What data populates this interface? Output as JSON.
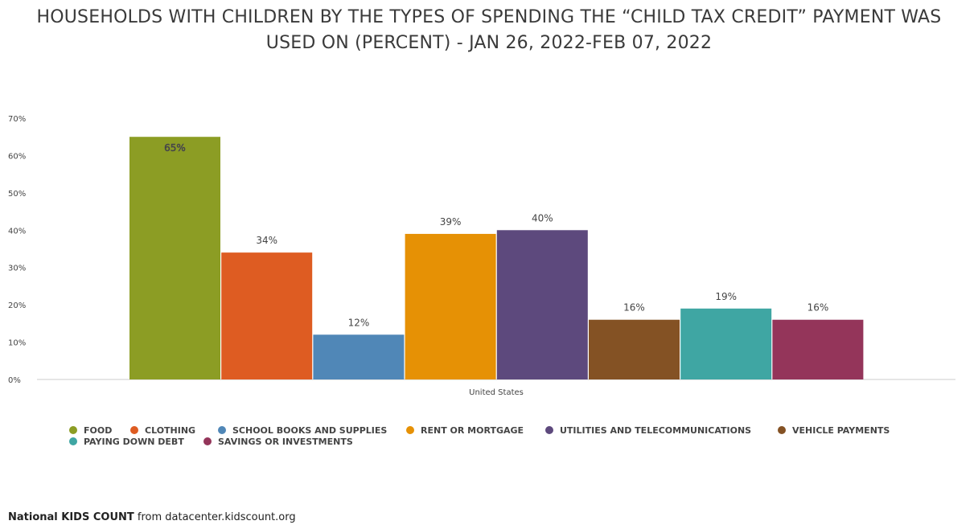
{
  "chart_data": {
    "type": "bar",
    "title": "HOUSEHOLDS WITH CHILDREN BY THE TYPES OF SPENDING THE “CHILD TAX CREDIT” PAYMENT WAS USED ON (PERCENT) - JAN 26, 2022-FEB 07, 2022",
    "title_lines": [
      "HOUSEHOLDS WITH CHILDREN BY THE TYPES OF SPENDING THE “CHILD TAX CREDIT” PAYMENT WAS",
      "USED ON (PERCENT) - JAN 26, 2022-FEB 07, 2022"
    ],
    "categories": [
      "United States"
    ],
    "ylim": [
      0,
      70
    ],
    "yticks": [
      "0%",
      "10%",
      "20%",
      "30%",
      "40%",
      "50%",
      "60%",
      "70%"
    ],
    "grid": false,
    "legend_position": "bottom",
    "series": [
      {
        "name": "FOOD",
        "values": [
          65
        ],
        "label": "65%",
        "color": "#8c9d24"
      },
      {
        "name": "CLOTHING",
        "values": [
          34
        ],
        "label": "34%",
        "color": "#de5c22"
      },
      {
        "name": "SCHOOL BOOKS AND SUPPLIES",
        "values": [
          12
        ],
        "label": "12%",
        "color": "#5087b7"
      },
      {
        "name": "RENT OR MORTGAGE",
        "values": [
          39
        ],
        "label": "39%",
        "color": "#e69105"
      },
      {
        "name": "UTILITIES AND TELECOMMUNICATIONS",
        "values": [
          40
        ],
        "label": "40%",
        "color": "#5d497d"
      },
      {
        "name": "VEHICLE PAYMENTS",
        "values": [
          16
        ],
        "label": "16%",
        "color": "#845224"
      },
      {
        "name": "PAYING DOWN DEBT",
        "values": [
          19
        ],
        "label": "19%",
        "color": "#3fa6a3"
      },
      {
        "name": "SAVINGS OR INVESTMENTS",
        "values": [
          16
        ],
        "label": "16%",
        "color": "#94355a"
      }
    ]
  },
  "footer": {
    "brand": "National KIDS COUNT",
    "source_text": " from datacenter.kidscount.org"
  }
}
